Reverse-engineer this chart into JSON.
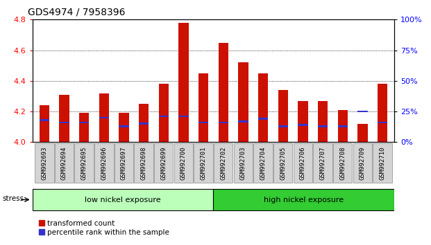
{
  "title": "GDS4974 / 7958396",
  "samples": [
    "GSM992693",
    "GSM992694",
    "GSM992695",
    "GSM992696",
    "GSM992697",
    "GSM992698",
    "GSM992699",
    "GSM992700",
    "GSM992701",
    "GSM992702",
    "GSM992703",
    "GSM992704",
    "GSM992705",
    "GSM992706",
    "GSM992707",
    "GSM992708",
    "GSM992709",
    "GSM992710"
  ],
  "transformed_count": [
    4.24,
    4.31,
    4.19,
    4.32,
    4.19,
    4.25,
    4.38,
    4.78,
    4.45,
    4.65,
    4.52,
    4.45,
    4.34,
    4.27,
    4.27,
    4.21,
    4.12,
    4.38
  ],
  "percentile_rank": [
    18,
    16,
    16,
    20,
    13,
    15,
    21,
    21,
    16,
    16,
    17,
    19,
    13,
    14,
    13,
    13,
    25,
    16
  ],
  "ylim_left": [
    4.0,
    4.8
  ],
  "ylim_right": [
    0,
    100
  ],
  "yticks_left": [
    4.0,
    4.2,
    4.4,
    4.6,
    4.8
  ],
  "yticks_right": [
    0,
    25,
    50,
    75,
    100
  ],
  "ytick_labels_right": [
    "0%",
    "25%",
    "50%",
    "75%",
    "100%"
  ],
  "bar_color_red": "#cc1100",
  "bar_color_blue": "#3333cc",
  "baseline": 4.0,
  "group1_label": "low nickel exposure",
  "group1_color": "#bbffbb",
  "group2_label": "high nickel exposure",
  "group2_color": "#33cc33",
  "group1_count": 9,
  "group2_count": 9,
  "stress_label": "stress",
  "legend_red": "transformed count",
  "legend_blue": "percentile rank within the sample",
  "title_fontsize": 10,
  "tick_fontsize": 6.5,
  "bar_width": 0.5
}
